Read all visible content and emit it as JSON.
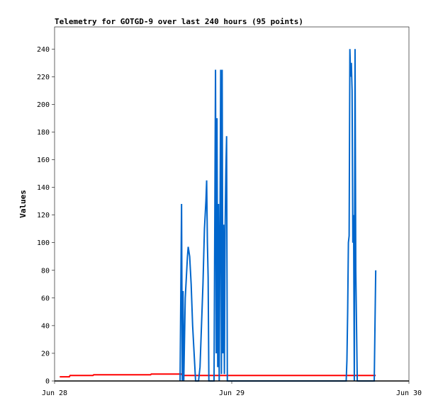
{
  "chart_data": {
    "type": "line",
    "title": "Telemetry for GOTGD-9 over last 240 hours (95 points)",
    "xlabel": "",
    "ylabel": "Values",
    "x_ticks": [
      {
        "label": "Jun 28",
        "hours": 0
      },
      {
        "label": "Jun 29",
        "hours": 24
      },
      {
        "label": "Jun 30",
        "hours": 48
      }
    ],
    "xlim_hours": [
      0,
      48
    ],
    "ylim": [
      0,
      256
    ],
    "y_ticks": [
      0,
      20,
      40,
      60,
      80,
      100,
      120,
      140,
      160,
      180,
      200,
      220,
      240
    ],
    "grid": false,
    "series": [
      {
        "color": "#ff0000",
        "points": [
          [
            0.7,
            3
          ],
          [
            2,
            3
          ],
          [
            2.1,
            4
          ],
          [
            5.2,
            4
          ],
          [
            5.3,
            4.5
          ],
          [
            13,
            4.5
          ],
          [
            13.1,
            5
          ],
          [
            17.2,
            5
          ],
          [
            17.3,
            4
          ],
          [
            43.5,
            4
          ]
        ]
      },
      {
        "color": "#0066cc",
        "points": [
          [
            17.0,
            0
          ],
          [
            17.2,
            128
          ],
          [
            17.3,
            0
          ],
          [
            17.4,
            65
          ],
          [
            17.5,
            0
          ],
          [
            17.7,
            60
          ],
          [
            18.0,
            90
          ],
          [
            18.1,
            97
          ],
          [
            18.3,
            90
          ],
          [
            18.5,
            70
          ],
          [
            18.7,
            40
          ],
          [
            18.9,
            20
          ],
          [
            19.1,
            0
          ],
          [
            19.5,
            0
          ],
          [
            19.7,
            10
          ],
          [
            19.9,
            40
          ],
          [
            20.1,
            70
          ],
          [
            20.3,
            110
          ],
          [
            20.5,
            130
          ],
          [
            20.6,
            145
          ],
          [
            20.7,
            100
          ],
          [
            20.8,
            75
          ],
          [
            20.9,
            0
          ],
          [
            21.6,
            0
          ],
          [
            21.8,
            225
          ],
          [
            21.9,
            20
          ],
          [
            22.0,
            190
          ],
          [
            22.1,
            10
          ],
          [
            22.2,
            128
          ],
          [
            22.3,
            0
          ],
          [
            22.4,
            105
          ],
          [
            22.5,
            225
          ],
          [
            22.6,
            5
          ],
          [
            22.7,
            225
          ],
          [
            22.8,
            20
          ],
          [
            22.9,
            113
          ],
          [
            23.0,
            5
          ],
          [
            23.1,
            110
          ],
          [
            23.2,
            152
          ],
          [
            23.3,
            177
          ],
          [
            23.4,
            0
          ],
          [
            39.5,
            0
          ],
          [
            39.6,
            15
          ],
          [
            39.7,
            50
          ],
          [
            39.8,
            100
          ],
          [
            39.9,
            105
          ],
          [
            40.0,
            240
          ],
          [
            40.1,
            220
          ],
          [
            40.2,
            230
          ],
          [
            40.3,
            210
          ],
          [
            40.4,
            100
          ],
          [
            40.5,
            120
          ],
          [
            40.6,
            0
          ],
          [
            40.7,
            240
          ],
          [
            40.8,
            80
          ],
          [
            40.9,
            40
          ],
          [
            41.0,
            0
          ],
          [
            43.3,
            0
          ],
          [
            43.4,
            40
          ],
          [
            43.5,
            80
          ]
        ]
      },
      {
        "color": "#000000",
        "points": [
          [
            0,
            0
          ],
          [
            48,
            0
          ]
        ]
      }
    ]
  }
}
